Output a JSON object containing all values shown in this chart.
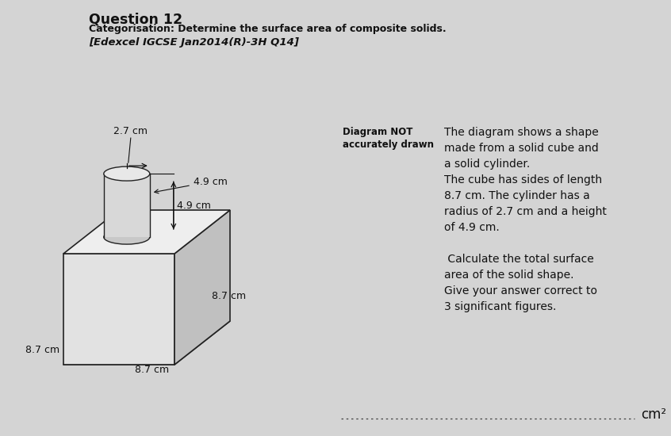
{
  "title": "Question 12",
  "categorisation": "Categorisation: Determine the surface area of composite solids.",
  "reference": "[Edexcel IGCSE Jan2014(R)-3H Q14]",
  "diagram_not": "Diagram NOT",
  "accurately_drawn": "accurately drawn",
  "desc_lines": [
    "The diagram shows a shape",
    "made from a solid cube and",
    "a solid cylinder.",
    "The cube has sides of length",
    "8.7 cm. The cylinder has a",
    "radius of 2.7 cm and a height",
    "of 4.9 cm.",
    "",
    " Calculate the total surface",
    "area of the solid shape.",
    "Give your answer correct to",
    "3 significant figures."
  ],
  "cube_side": "8.7 cm",
  "cylinder_radius": "2.7 cm",
  "cylinder_height": "4.9 cm",
  "answer_suffix": "cm²",
  "bg_color": "#d4d4d4",
  "text_color": "#111111",
  "edge_color": "#222222",
  "cube_front_color": "#e2e2e2",
  "cube_right_color": "#c0c0c0",
  "cube_top_color": "#eeeeee",
  "cube_bottom_color": "#b8b8b8",
  "cyl_body_color": "#d8d8d8",
  "cyl_top_color": "#e8e8e8",
  "cyl_bot_color": "#c8c8c8"
}
